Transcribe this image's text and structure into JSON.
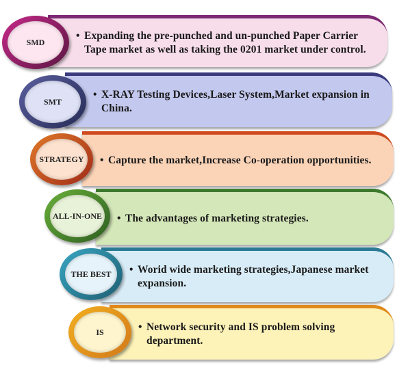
{
  "items": [
    {
      "label": "SMD",
      "text": "Expanding the pre-punched and un-punched Paper Carrier Tape market as well as taking the 0201 market under control.",
      "bar_color": "#f7ddea",
      "top_color": "#7b2a73",
      "ring_from": "#c62a8a",
      "ring_to": "#5a1642",
      "inner": "#fde6f0"
    },
    {
      "label": "SMT",
      "text": "X-RAY Testing Devices,Laser System,Market expansion in China.",
      "bar_color": "#c3c8ee",
      "top_color": "#3a3a7e",
      "ring_from": "#5b5fa0",
      "ring_to": "#252b55",
      "inner": "#dfe2f6"
    },
    {
      "label": "STRATEGY",
      "text": "Capture the market,Increase Co-operation opportunities.",
      "bar_color": "#fbd4b8",
      "top_color": "#cf4a1e",
      "ring_from": "#e07a2a",
      "ring_to": "#a02a18",
      "inner": "#fde2cf"
    },
    {
      "label": "ALL-IN-ONE",
      "text": "The advantages of marketing strategies.",
      "bar_color": "#d4e7b8",
      "top_color": "#3e7a2e",
      "ring_from": "#6ab03a",
      "ring_to": "#2e5e22",
      "inner": "#e8f2d8"
    },
    {
      "label": "THE BEST",
      "text": "Worid wide marketing strategies,Japanese market expansion.",
      "bar_color": "#d8ecf7",
      "top_color": "#2a7a94",
      "ring_from": "#3aa6c2",
      "ring_to": "#1e5e72",
      "inner": "#e6f3fa"
    },
    {
      "label": "IS",
      "text": "Network security and IS problem solving department.",
      "bar_color": "#fdf2b8",
      "top_color": "#e08a1a",
      "ring_from": "#f2b020",
      "ring_to": "#d2781a",
      "inner": "#fef5cf"
    }
  ]
}
